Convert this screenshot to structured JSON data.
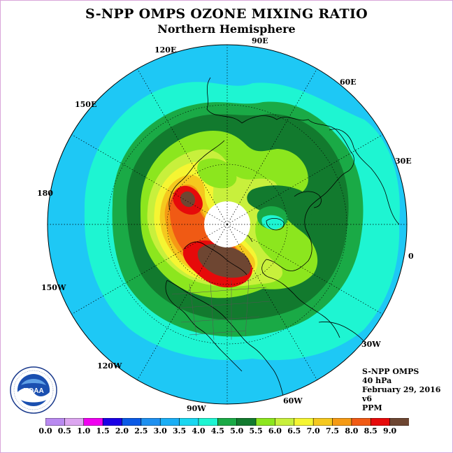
{
  "title": "S-NPP OMPS OZONE MIXING RATIO",
  "subtitle": "Northern Hemisphere",
  "longitude_labels": [
    "120E",
    "90E",
    "60E",
    "150E",
    "30E",
    "180",
    "0",
    "150W",
    "30W",
    "120W",
    "60W",
    "90W"
  ],
  "info": {
    "instrument": "S-NPP OMPS",
    "pressure": "40 hPa",
    "date": "February 29, 2016",
    "version": "v6",
    "units": "PPM"
  },
  "colorbar": {
    "ticks": [
      "0.0",
      "0.5",
      "1.0",
      "1.5",
      "2.0",
      "2.5",
      "3.0",
      "3.5",
      "4.0",
      "4.5",
      "5.0",
      "5.5",
      "6.0",
      "6.5",
      "7.0",
      "7.5",
      "8.0",
      "8.5",
      "9.0"
    ],
    "colors": [
      "#b98af0",
      "#dca6f0",
      "#f000f0",
      "#1a00e6",
      "#0a5ae6",
      "#1e90f0",
      "#1aaef5",
      "#19d6f0",
      "#1ef5d2",
      "#1aaa46",
      "#127a2e",
      "#8ce61e",
      "#c8f03c",
      "#f5f532",
      "#f5c81e",
      "#f59a14",
      "#f05a14",
      "#e60a0a",
      "#6e4632"
    ]
  },
  "logo": {
    "text": "NOAA",
    "ring_text": "NATIONAL OCEANIC AND ATMOSPHERIC ADMINISTRATION · U.S. DEPARTMENT OF COMMERCE"
  }
}
